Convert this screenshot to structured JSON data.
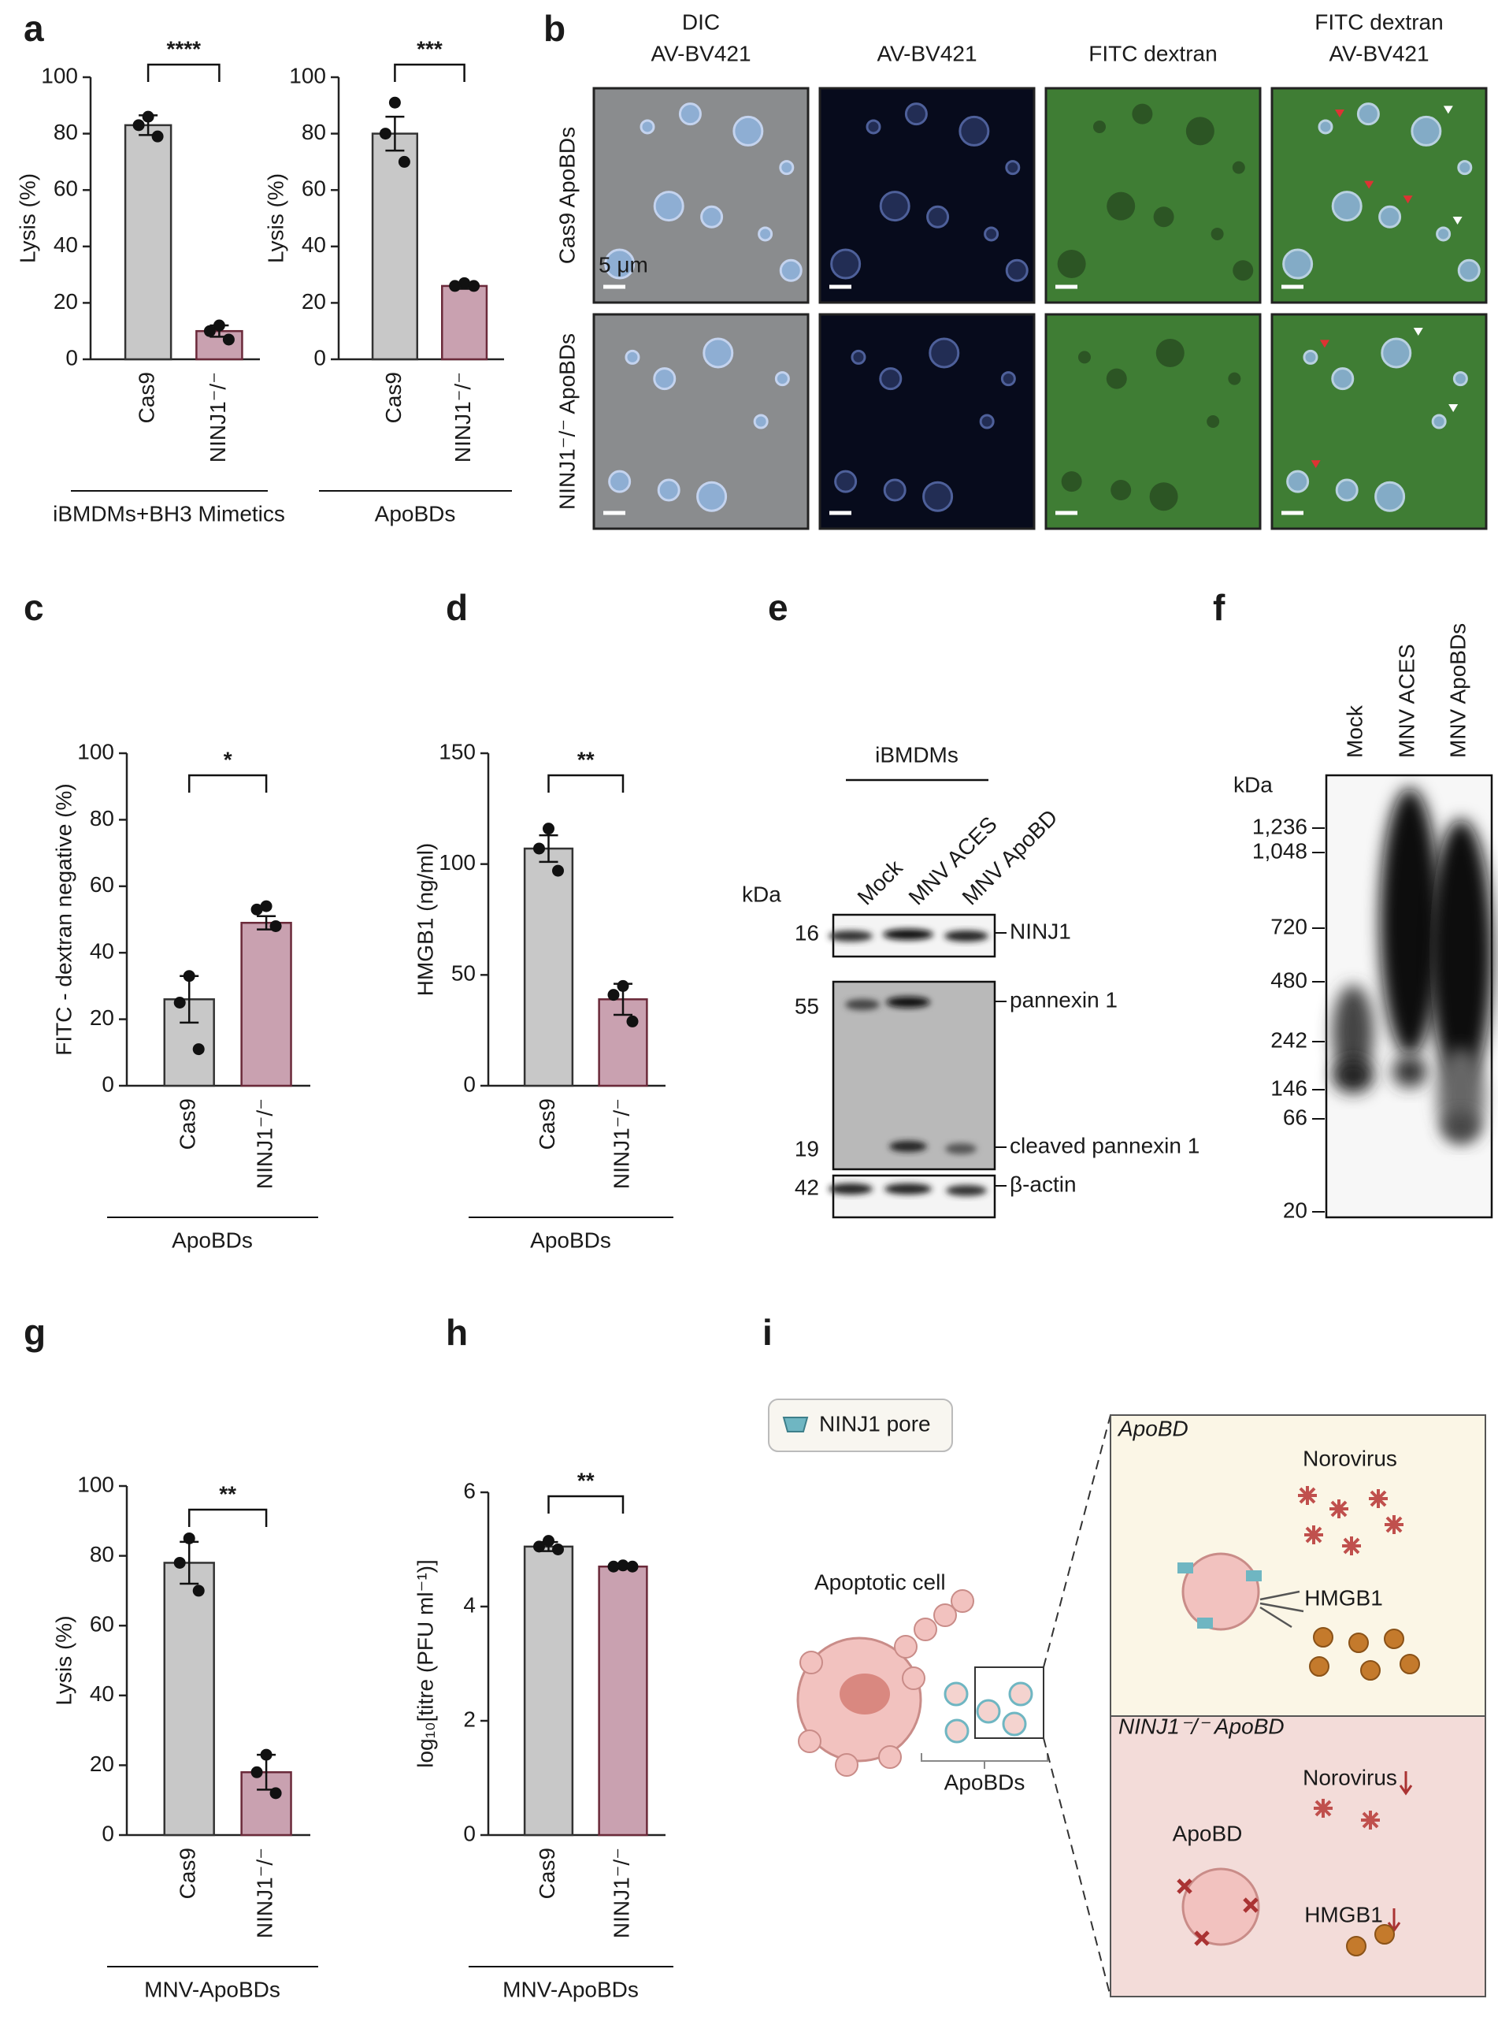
{
  "panel_labels": [
    "a",
    "b",
    "c",
    "d",
    "e",
    "f",
    "g",
    "h",
    "i"
  ],
  "chart_data": [
    {
      "type": "bar",
      "ylabel": "Lysis (%)",
      "categories": [
        "Cas9",
        "NINJ1⁻/⁻"
      ],
      "values": [
        83,
        10
      ],
      "errors": [
        3.5,
        2
      ],
      "points": [
        [
          86,
          83,
          79
        ],
        [
          12,
          10,
          7
        ]
      ],
      "colors": [
        "#c8c8c8",
        "#c9a1b0"
      ],
      "ylim": [
        0,
        100
      ],
      "yticks": [
        0,
        20,
        40,
        60,
        80,
        100
      ],
      "significance": "****",
      "group_label": "iBMDMs+BH3 Mimetics"
    },
    {
      "type": "bar",
      "ylabel": "Lysis (%)",
      "categories": [
        "Cas9",
        "NINJ1⁻/⁻"
      ],
      "values": [
        80,
        26
      ],
      "errors": [
        6,
        1
      ],
      "points": [
        [
          91,
          80,
          70
        ],
        [
          27,
          26,
          26
        ]
      ],
      "colors": [
        "#c8c8c8",
        "#c9a1b0"
      ],
      "ylim": [
        0,
        100
      ],
      "yticks": [
        0,
        20,
        40,
        60,
        80,
        100
      ],
      "significance": "***",
      "group_label": "ApoBDs"
    },
    {
      "type": "bar",
      "ylabel": "FITC - dextran negative (%)",
      "categories": [
        "Cas9",
        "NINJ1⁻/⁻"
      ],
      "values": [
        26,
        49
      ],
      "errors": [
        7,
        2
      ],
      "points": [
        [
          33,
          25,
          11
        ],
        [
          54,
          53,
          48
        ]
      ],
      "colors": [
        "#c8c8c8",
        "#c9a1b0"
      ],
      "ylim": [
        0,
        100
      ],
      "yticks": [
        0,
        20,
        40,
        60,
        80,
        100
      ],
      "significance": "*",
      "group_label": "ApoBDs"
    },
    {
      "type": "bar",
      "ylabel": "HMGB1 (ng/ml)",
      "categories": [
        "Cas9",
        "NINJ1⁻/⁻"
      ],
      "values": [
        107,
        39
      ],
      "errors": [
        6,
        7
      ],
      "points": [
        [
          116,
          107,
          97
        ],
        [
          45,
          41,
          29
        ]
      ],
      "colors": [
        "#c8c8c8",
        "#c9a1b0"
      ],
      "ylim": [
        0,
        150
      ],
      "yticks": [
        0,
        50,
        100,
        150
      ],
      "significance": "**",
      "group_label": "ApoBDs"
    },
    {
      "type": "bar",
      "ylabel": "Lysis (%)",
      "categories": [
        "Cas9",
        "NINJ1⁻/⁻"
      ],
      "values": [
        78,
        18
      ],
      "errors": [
        6,
        5
      ],
      "points": [
        [
          85,
          78,
          70
        ],
        [
          23,
          18,
          12
        ]
      ],
      "colors": [
        "#c8c8c8",
        "#c9a1b0"
      ],
      "ylim": [
        0,
        100
      ],
      "yticks": [
        0,
        20,
        40,
        60,
        80,
        100
      ],
      "significance": "**",
      "group_label": "MNV-ApoBDs"
    },
    {
      "type": "bar",
      "ylabel": "log₁₀[titre (PFU ml⁻¹)]",
      "categories": [
        "Cas9",
        "NINJ1⁻/⁻"
      ],
      "values": [
        5.05,
        4.7
      ],
      "errors": [
        0.08,
        0.03
      ],
      "points": [
        [
          5.15,
          5.05,
          5.0
        ],
        [
          4.72,
          4.7,
          4.7
        ]
      ],
      "colors": [
        "#c8c8c8",
        "#c9a1b0"
      ],
      "ylim": [
        0,
        6
      ],
      "yticks": [
        0,
        2,
        4,
        6
      ],
      "significance": "**",
      "group_label": "MNV-ApoBDs"
    }
  ],
  "panel_b": {
    "column_headers": [
      [
        "DIC",
        "AV-BV421"
      ],
      [
        "AV-BV421"
      ],
      [
        "FITC dextran"
      ],
      [
        "FITC dextran",
        "AV-BV421"
      ]
    ],
    "row_labels": [
      "Cas9  ApoBDs",
      "NINJ1⁻/⁻ ApoBDs"
    ],
    "scale_bar": "5 μm"
  },
  "panel_e": {
    "group": "iBMDMs",
    "lanes": [
      "Mock",
      "MNV ACES",
      "MNV ApoBD"
    ],
    "unit": "kDa",
    "markers": [
      "16",
      "55",
      "19",
      "42"
    ],
    "bands": [
      "NINJ1",
      "pannexin 1",
      "cleaved pannexin 1",
      "β-actin"
    ]
  },
  "panel_f": {
    "lanes": [
      "Mock",
      "MNV ACES",
      "MNV ApoBDs"
    ],
    "unit": "kDa",
    "markers": [
      "1,236",
      "1,048",
      "720",
      "480",
      "242",
      "146",
      "66",
      "20"
    ]
  },
  "panel_i": {
    "legend": "NINJ1 pore",
    "cell": "Apoptotic cell",
    "group": "ApoBDs",
    "top_title": "ApoBD",
    "top_virus": "Norovirus",
    "top_hmgb1": "HMGB1",
    "bottom_title": "NINJ1⁻/⁻ ApoBD",
    "bottom_virus": "Norovirus",
    "bottom_cell": "ApoBD",
    "bottom_hmgb1": "HMGB1"
  }
}
